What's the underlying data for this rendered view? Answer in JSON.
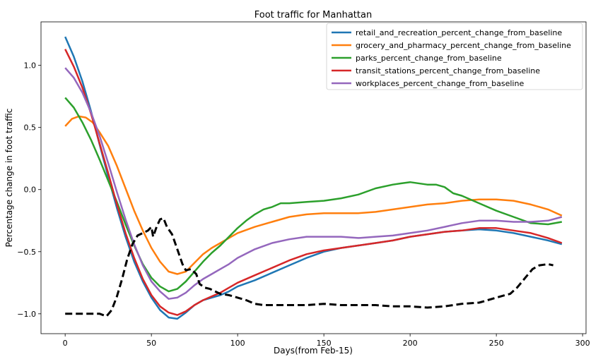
{
  "chart_data": {
    "type": "line",
    "title": "Foot traffic for Manhattan",
    "xlabel": "Days(from Feb-15)",
    "ylabel": "Percentage change in foot traffic",
    "xlim": [
      -14,
      302
    ],
    "ylim": [
      -1.16,
      1.35
    ],
    "xticks": [
      0,
      50,
      100,
      150,
      200,
      250,
      300
    ],
    "yticks": [
      -1.0,
      -0.5,
      0.0,
      0.5,
      1.0
    ],
    "ytick_labels": [
      "−1.0",
      "−0.5",
      "0.0",
      "0.5",
      "1.0"
    ],
    "grid": false,
    "legend_position": "top-right",
    "series": [
      {
        "name": "retail_and_recreation_percent_change_from_baseline",
        "color": "#1f77b4",
        "points": [
          [
            0,
            1.23
          ],
          [
            5,
            1.07
          ],
          [
            10,
            0.87
          ],
          [
            15,
            0.63
          ],
          [
            20,
            0.36
          ],
          [
            25,
            0.1
          ],
          [
            30,
            -0.15
          ],
          [
            35,
            -0.38
          ],
          [
            40,
            -0.58
          ],
          [
            45,
            -0.74
          ],
          [
            50,
            -0.87
          ],
          [
            55,
            -0.97
          ],
          [
            60,
            -1.03
          ],
          [
            65,
            -1.04
          ],
          [
            70,
            -0.99
          ],
          [
            75,
            -0.93
          ],
          [
            80,
            -0.89
          ],
          [
            85,
            -0.87
          ],
          [
            90,
            -0.85
          ],
          [
            95,
            -0.82
          ],
          [
            100,
            -0.78
          ],
          [
            110,
            -0.73
          ],
          [
            120,
            -0.67
          ],
          [
            130,
            -0.61
          ],
          [
            140,
            -0.55
          ],
          [
            150,
            -0.5
          ],
          [
            160,
            -0.47
          ],
          [
            170,
            -0.45
          ],
          [
            180,
            -0.43
          ],
          [
            190,
            -0.41
          ],
          [
            200,
            -0.38
          ],
          [
            210,
            -0.36
          ],
          [
            220,
            -0.34
          ],
          [
            230,
            -0.33
          ],
          [
            240,
            -0.32
          ],
          [
            250,
            -0.33
          ],
          [
            260,
            -0.35
          ],
          [
            270,
            -0.38
          ],
          [
            280,
            -0.41
          ],
          [
            288,
            -0.44
          ]
        ]
      },
      {
        "name": "grocery_and_pharmacy_percent_change_from_baseline",
        "color": "#ff7f0e",
        "points": [
          [
            0,
            0.51
          ],
          [
            4,
            0.57
          ],
          [
            8,
            0.59
          ],
          [
            12,
            0.58
          ],
          [
            16,
            0.54
          ],
          [
            20,
            0.46
          ],
          [
            25,
            0.35
          ],
          [
            30,
            0.19
          ],
          [
            35,
            0.01
          ],
          [
            40,
            -0.17
          ],
          [
            45,
            -0.33
          ],
          [
            50,
            -0.47
          ],
          [
            55,
            -0.58
          ],
          [
            60,
            -0.66
          ],
          [
            65,
            -0.68
          ],
          [
            70,
            -0.66
          ],
          [
            75,
            -0.59
          ],
          [
            80,
            -0.52
          ],
          [
            85,
            -0.47
          ],
          [
            90,
            -0.43
          ],
          [
            95,
            -0.39
          ],
          [
            100,
            -0.35
          ],
          [
            110,
            -0.3
          ],
          [
            120,
            -0.26
          ],
          [
            130,
            -0.22
          ],
          [
            140,
            -0.2
          ],
          [
            150,
            -0.19
          ],
          [
            160,
            -0.19
          ],
          [
            170,
            -0.19
          ],
          [
            180,
            -0.18
          ],
          [
            190,
            -0.16
          ],
          [
            200,
            -0.14
          ],
          [
            210,
            -0.12
          ],
          [
            220,
            -0.11
          ],
          [
            230,
            -0.09
          ],
          [
            240,
            -0.08
          ],
          [
            250,
            -0.08
          ],
          [
            260,
            -0.09
          ],
          [
            270,
            -0.12
          ],
          [
            280,
            -0.16
          ],
          [
            288,
            -0.21
          ]
        ]
      },
      {
        "name": "parks_percent_change_from_baseline",
        "color": "#2ca02c",
        "points": [
          [
            0,
            0.74
          ],
          [
            5,
            0.66
          ],
          [
            10,
            0.54
          ],
          [
            15,
            0.4
          ],
          [
            20,
            0.24
          ],
          [
            25,
            0.07
          ],
          [
            30,
            -0.1
          ],
          [
            35,
            -0.28
          ],
          [
            40,
            -0.45
          ],
          [
            45,
            -0.6
          ],
          [
            50,
            -0.71
          ],
          [
            55,
            -0.78
          ],
          [
            60,
            -0.82
          ],
          [
            65,
            -0.8
          ],
          [
            70,
            -0.74
          ],
          [
            75,
            -0.66
          ],
          [
            80,
            -0.58
          ],
          [
            85,
            -0.51
          ],
          [
            90,
            -0.45
          ],
          [
            95,
            -0.38
          ],
          [
            100,
            -0.31
          ],
          [
            105,
            -0.25
          ],
          [
            110,
            -0.2
          ],
          [
            115,
            -0.16
          ],
          [
            120,
            -0.14
          ],
          [
            125,
            -0.11
          ],
          [
            130,
            -0.11
          ],
          [
            140,
            -0.1
          ],
          [
            150,
            -0.09
          ],
          [
            160,
            -0.07
          ],
          [
            170,
            -0.04
          ],
          [
            180,
            0.01
          ],
          [
            190,
            0.04
          ],
          [
            195,
            0.05
          ],
          [
            200,
            0.06
          ],
          [
            210,
            0.04
          ],
          [
            215,
            0.04
          ],
          [
            220,
            0.02
          ],
          [
            225,
            -0.03
          ],
          [
            230,
            -0.05
          ],
          [
            240,
            -0.11
          ],
          [
            250,
            -0.17
          ],
          [
            260,
            -0.22
          ],
          [
            270,
            -0.27
          ],
          [
            280,
            -0.28
          ],
          [
            288,
            -0.26
          ]
        ]
      },
      {
        "name": "transit_stations_percent_change_from_baseline",
        "color": "#d62728",
        "points": [
          [
            0,
            1.13
          ],
          [
            5,
            0.99
          ],
          [
            10,
            0.82
          ],
          [
            15,
            0.61
          ],
          [
            20,
            0.37
          ],
          [
            25,
            0.13
          ],
          [
            30,
            -0.12
          ],
          [
            35,
            -0.35
          ],
          [
            40,
            -0.55
          ],
          [
            45,
            -0.72
          ],
          [
            50,
            -0.85
          ],
          [
            55,
            -0.94
          ],
          [
            60,
            -0.99
          ],
          [
            65,
            -1.01
          ],
          [
            70,
            -0.98
          ],
          [
            75,
            -0.93
          ],
          [
            80,
            -0.89
          ],
          [
            85,
            -0.86
          ],
          [
            90,
            -0.83
          ],
          [
            95,
            -0.79
          ],
          [
            100,
            -0.75
          ],
          [
            110,
            -0.69
          ],
          [
            120,
            -0.63
          ],
          [
            130,
            -0.57
          ],
          [
            140,
            -0.52
          ],
          [
            150,
            -0.49
          ],
          [
            160,
            -0.47
          ],
          [
            170,
            -0.45
          ],
          [
            180,
            -0.43
          ],
          [
            190,
            -0.41
          ],
          [
            200,
            -0.38
          ],
          [
            210,
            -0.36
          ],
          [
            220,
            -0.34
          ],
          [
            230,
            -0.33
          ],
          [
            240,
            -0.31
          ],
          [
            250,
            -0.31
          ],
          [
            260,
            -0.33
          ],
          [
            270,
            -0.35
          ],
          [
            280,
            -0.39
          ],
          [
            288,
            -0.43
          ]
        ]
      },
      {
        "name": "workplaces_percent_change_from_baseline",
        "color": "#9467bd",
        "points": [
          [
            0,
            0.98
          ],
          [
            5,
            0.9
          ],
          [
            10,
            0.78
          ],
          [
            15,
            0.62
          ],
          [
            20,
            0.43
          ],
          [
            25,
            0.21
          ],
          [
            30,
            -0.02
          ],
          [
            35,
            -0.24
          ],
          [
            40,
            -0.44
          ],
          [
            45,
            -0.61
          ],
          [
            50,
            -0.74
          ],
          [
            55,
            -0.82
          ],
          [
            60,
            -0.88
          ],
          [
            65,
            -0.87
          ],
          [
            70,
            -0.83
          ],
          [
            75,
            -0.77
          ],
          [
            80,
            -0.72
          ],
          [
            85,
            -0.68
          ],
          [
            90,
            -0.64
          ],
          [
            95,
            -0.6
          ],
          [
            100,
            -0.55
          ],
          [
            110,
            -0.48
          ],
          [
            120,
            -0.43
          ],
          [
            130,
            -0.4
          ],
          [
            140,
            -0.38
          ],
          [
            150,
            -0.38
          ],
          [
            160,
            -0.38
          ],
          [
            170,
            -0.39
          ],
          [
            180,
            -0.38
          ],
          [
            190,
            -0.37
          ],
          [
            200,
            -0.35
          ],
          [
            210,
            -0.33
          ],
          [
            220,
            -0.3
          ],
          [
            230,
            -0.27
          ],
          [
            240,
            -0.25
          ],
          [
            250,
            -0.25
          ],
          [
            260,
            -0.26
          ],
          [
            270,
            -0.26
          ],
          [
            280,
            -0.25
          ],
          [
            288,
            -0.22
          ]
        ]
      },
      {
        "name": "",
        "color": "#000000",
        "dashed": true,
        "points": [
          [
            0,
            -1.0
          ],
          [
            20,
            -1.0
          ],
          [
            24,
            -1.02
          ],
          [
            27,
            -0.97
          ],
          [
            30,
            -0.86
          ],
          [
            33,
            -0.72
          ],
          [
            36,
            -0.56
          ],
          [
            39,
            -0.44
          ],
          [
            42,
            -0.37
          ],
          [
            45,
            -0.35
          ],
          [
            48,
            -0.33
          ],
          [
            50,
            -0.3
          ],
          [
            51,
            -0.38
          ],
          [
            53,
            -0.3
          ],
          [
            55,
            -0.24
          ],
          [
            57,
            -0.23
          ],
          [
            59,
            -0.3
          ],
          [
            62,
            -0.36
          ],
          [
            65,
            -0.48
          ],
          [
            68,
            -0.6
          ],
          [
            70,
            -0.65
          ],
          [
            73,
            -0.64
          ],
          [
            76,
            -0.68
          ],
          [
            78,
            -0.76
          ],
          [
            81,
            -0.79
          ],
          [
            84,
            -0.8
          ],
          [
            87,
            -0.82
          ],
          [
            90,
            -0.84
          ],
          [
            95,
            -0.85
          ],
          [
            100,
            -0.87
          ],
          [
            105,
            -0.89
          ],
          [
            110,
            -0.92
          ],
          [
            115,
            -0.93
          ],
          [
            120,
            -0.93
          ],
          [
            130,
            -0.93
          ],
          [
            140,
            -0.93
          ],
          [
            150,
            -0.92
          ],
          [
            160,
            -0.93
          ],
          [
            170,
            -0.93
          ],
          [
            180,
            -0.93
          ],
          [
            190,
            -0.94
          ],
          [
            200,
            -0.94
          ],
          [
            210,
            -0.95
          ],
          [
            220,
            -0.94
          ],
          [
            225,
            -0.93
          ],
          [
            230,
            -0.92
          ],
          [
            240,
            -0.91
          ],
          [
            245,
            -0.89
          ],
          [
            250,
            -0.87
          ],
          [
            255,
            -0.85
          ],
          [
            258,
            -0.84
          ],
          [
            262,
            -0.79
          ],
          [
            265,
            -0.74
          ],
          [
            268,
            -0.69
          ],
          [
            271,
            -0.64
          ],
          [
            275,
            -0.61
          ],
          [
            280,
            -0.6
          ],
          [
            283,
            -0.61
          ]
        ]
      }
    ]
  }
}
